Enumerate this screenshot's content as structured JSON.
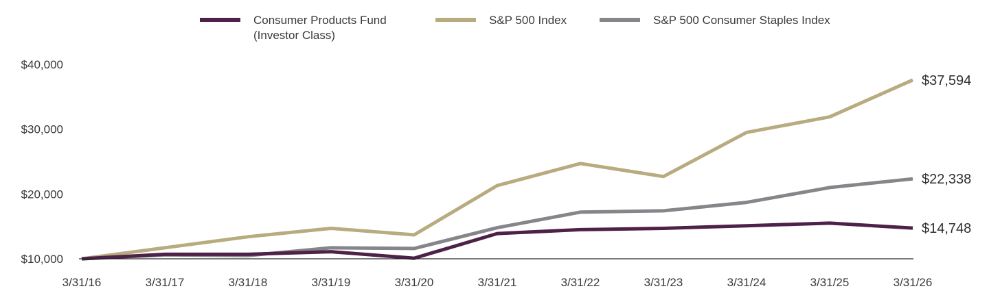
{
  "chart_data": {
    "type": "line",
    "title": "",
    "xlabel": "",
    "ylabel": "",
    "ylim": [
      10000,
      40000
    ],
    "y_ticks": [
      {
        "value": 10000,
        "label": "$10,000"
      },
      {
        "value": 20000,
        "label": "$20,000"
      },
      {
        "value": 30000,
        "label": "$30,000"
      },
      {
        "value": 40000,
        "label": "$40,000"
      }
    ],
    "x": [
      "3/31/16",
      "3/31/17",
      "3/31/18",
      "3/31/19",
      "3/31/20",
      "3/31/21",
      "3/31/22",
      "3/31/23",
      "3/31/24",
      "3/31/25",
      "3/31/26"
    ],
    "grid": false,
    "legend_position": "top",
    "series": [
      {
        "name": "S&P 500 Index",
        "color": "#b8ab7f",
        "values": [
          10000,
          11700,
          13400,
          14700,
          13700,
          21300,
          24700,
          22700,
          29500,
          31900,
          37594
        ],
        "end_label": "$37,594"
      },
      {
        "name": "S&P 500 Consumer Staples Index",
        "color": "#85858a",
        "values": [
          10000,
          10600,
          10500,
          11700,
          11600,
          14800,
          17200,
          17400,
          18700,
          21000,
          22338
        ],
        "end_label": "$22,338"
      },
      {
        "name": "Consumer Products Fund (Investor Class)",
        "legend_lines": [
          "Consumer Products Fund",
          "(Investor Class)"
        ],
        "color": "#4d2148",
        "values": [
          10000,
          10700,
          10700,
          11100,
          10100,
          13900,
          14500,
          14700,
          15100,
          15500,
          14748
        ],
        "end_label": "$14,748"
      }
    ],
    "legend_order": [
      2,
      0,
      1
    ]
  }
}
